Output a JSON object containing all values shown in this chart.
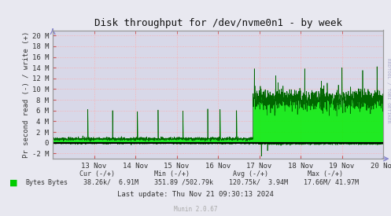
{
  "title": "Disk throughput for /dev/nvme0n1 - by week",
  "ylabel": "Pr second read (-) / write (+)",
  "xlabel_dates": [
    "13 Nov",
    "14 Nov",
    "15 Nov",
    "16 Nov",
    "17 Nov",
    "18 Nov",
    "19 Nov",
    "20 Nov"
  ],
  "ylim": [
    -3000000,
    21000000
  ],
  "yticks": [
    -2000000,
    0,
    2000000,
    4000000,
    6000000,
    8000000,
    10000000,
    12000000,
    14000000,
    16000000,
    18000000,
    20000000
  ],
  "ytick_labels": [
    "-2 M",
    "0",
    "2 M",
    "4 M",
    "6 M",
    "8 M",
    "10 M",
    "12 M",
    "14 M",
    "16 M",
    "18 M",
    "20 M"
  ],
  "bg_color": "#e8e8f0",
  "plot_bg_color": "#d8d8e8",
  "grid_color": "#ffaaaa",
  "line_color": "#00ee00",
  "line_color_dark": "#006600",
  "zero_line_color": "#000000",
  "legend_label": "Bytes",
  "legend_color": "#00cc00",
  "last_update": "Last update: Thu Nov 21 09:30:13 2024",
  "munin_version": "Munin 2.0.67",
  "rrdtool_text": "RRDTOOL / TOBI OETIKER",
  "stats_header": "    Cur (-/+)          Min (-/+)           Avg (-/+)          Max (-/+)",
  "stats_values": "Bytes    38.26k/  6.91M    351.89 /502.79k    120.75k/  3.94M    17.66M/ 41.97M",
  "figsize": [
    4.97,
    2.75
  ],
  "dpi": 100
}
